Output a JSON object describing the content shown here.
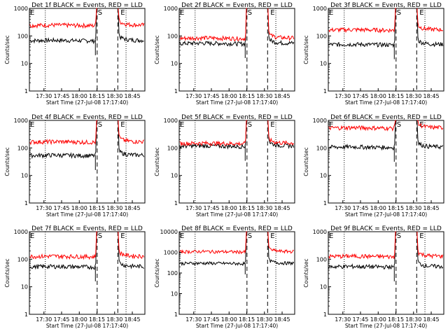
{
  "figure": {
    "xlabel": "Start Time (27-Jul-08 17:17:40)",
    "ylabel": "Counts/sec",
    "xticks": [
      "17:30",
      "17:45",
      "18:00",
      "18:15",
      "18:30",
      "18:45"
    ],
    "markers": {
      "start": "E",
      "mid": "S",
      "end": "E"
    },
    "colors": {
      "events": "#000000",
      "lld": "#ff0000",
      "frame": "#000000"
    }
  },
  "chart_data": [
    {
      "type": "line",
      "title": "Det 1f BLACK = Events, RED = LLD",
      "ylim": [
        1,
        1000
      ],
      "yscale": "log",
      "yticks": [
        "1",
        "10",
        "100",
        "1000"
      ],
      "xlim_min": [
        17.67,
        65
      ],
      "series": [
        {
          "name": "Events",
          "color": "#000000",
          "base": 70
        },
        {
          "name": "LLD",
          "color": "#ff0000",
          "base": 250
        }
      ]
    },
    {
      "type": "line",
      "title": "Det 2f BLACK = Events, RED = LLD",
      "ylim": [
        1,
        1000
      ],
      "yscale": "log",
      "yticks": [
        "1",
        "10",
        "100",
        "1000"
      ],
      "xlim_min": [
        17.67,
        65
      ],
      "series": [
        {
          "name": "Events",
          "color": "#000000",
          "base": 55
        },
        {
          "name": "LLD",
          "color": "#ff0000",
          "base": 85
        }
      ]
    },
    {
      "type": "line",
      "title": "Det 3f BLACK = Events, RED = LLD",
      "ylim": [
        1,
        1000
      ],
      "yscale": "log",
      "yticks": [
        "1",
        "10",
        "100",
        "1000"
      ],
      "xlim_min": [
        17.67,
        65
      ],
      "series": [
        {
          "name": "Events",
          "color": "#000000",
          "base": 50
        },
        {
          "name": "LLD",
          "color": "#ff0000",
          "base": 170
        }
      ]
    },
    {
      "type": "line",
      "title": "Det 4f BLACK = Events, RED = LLD",
      "ylim": [
        1,
        1000
      ],
      "yscale": "log",
      "yticks": [
        "1",
        "10",
        "100",
        "1000"
      ],
      "xlim_min": [
        17.67,
        65
      ],
      "series": [
        {
          "name": "Events",
          "color": "#000000",
          "base": 55
        },
        {
          "name": "LLD",
          "color": "#ff0000",
          "base": 170
        }
      ]
    },
    {
      "type": "line",
      "title": "Det 5f BLACK = Events, RED = LLD",
      "ylim": [
        1,
        1000
      ],
      "yscale": "log",
      "yticks": [
        "1",
        "10",
        "100",
        "1000"
      ],
      "xlim_min": [
        17.67,
        65
      ],
      "series": [
        {
          "name": "Events",
          "color": "#000000",
          "base": 120
        },
        {
          "name": "LLD",
          "color": "#ff0000",
          "base": 150
        }
      ]
    },
    {
      "type": "line",
      "title": "Det 6f BLACK = Events, RED = LLD",
      "ylim": [
        1,
        1000
      ],
      "yscale": "log",
      "yticks": [
        "1",
        "10",
        "100",
        "1000"
      ],
      "xlim_min": [
        17.67,
        65
      ],
      "series": [
        {
          "name": "Events",
          "color": "#000000",
          "base": 110
        },
        {
          "name": "LLD",
          "color": "#ff0000",
          "base": 550
        }
      ]
    },
    {
      "type": "line",
      "title": "Det 7f BLACK = Events, RED = LLD",
      "ylim": [
        1,
        1000
      ],
      "yscale": "log",
      "yticks": [
        "1",
        "10",
        "100",
        "1000"
      ],
      "xlim_min": [
        17.67,
        65
      ],
      "series": [
        {
          "name": "Events",
          "color": "#000000",
          "base": 55
        },
        {
          "name": "LLD",
          "color": "#ff0000",
          "base": 130
        }
      ]
    },
    {
      "type": "line",
      "title": "Det 8f BLACK = Events, RED = LLD",
      "ylim": [
        1,
        10000
      ],
      "yscale": "log",
      "yticks": [
        "1",
        "10",
        "100",
        "1000",
        "10000"
      ],
      "xlim_min": [
        17.67,
        65
      ],
      "series": [
        {
          "name": "Events",
          "color": "#000000",
          "base": 300
        },
        {
          "name": "LLD",
          "color": "#ff0000",
          "base": 1100
        }
      ]
    },
    {
      "type": "line",
      "title": "Det 9f BLACK = Events, RED = LLD",
      "ylim": [
        1,
        1000
      ],
      "yscale": "log",
      "yticks": [
        "1",
        "10",
        "100",
        "1000"
      ],
      "xlim_min": [
        17.67,
        65
      ],
      "series": [
        {
          "name": "Events",
          "color": "#000000",
          "base": 55
        },
        {
          "name": "LLD",
          "color": "#ff0000",
          "base": 130
        }
      ]
    }
  ]
}
